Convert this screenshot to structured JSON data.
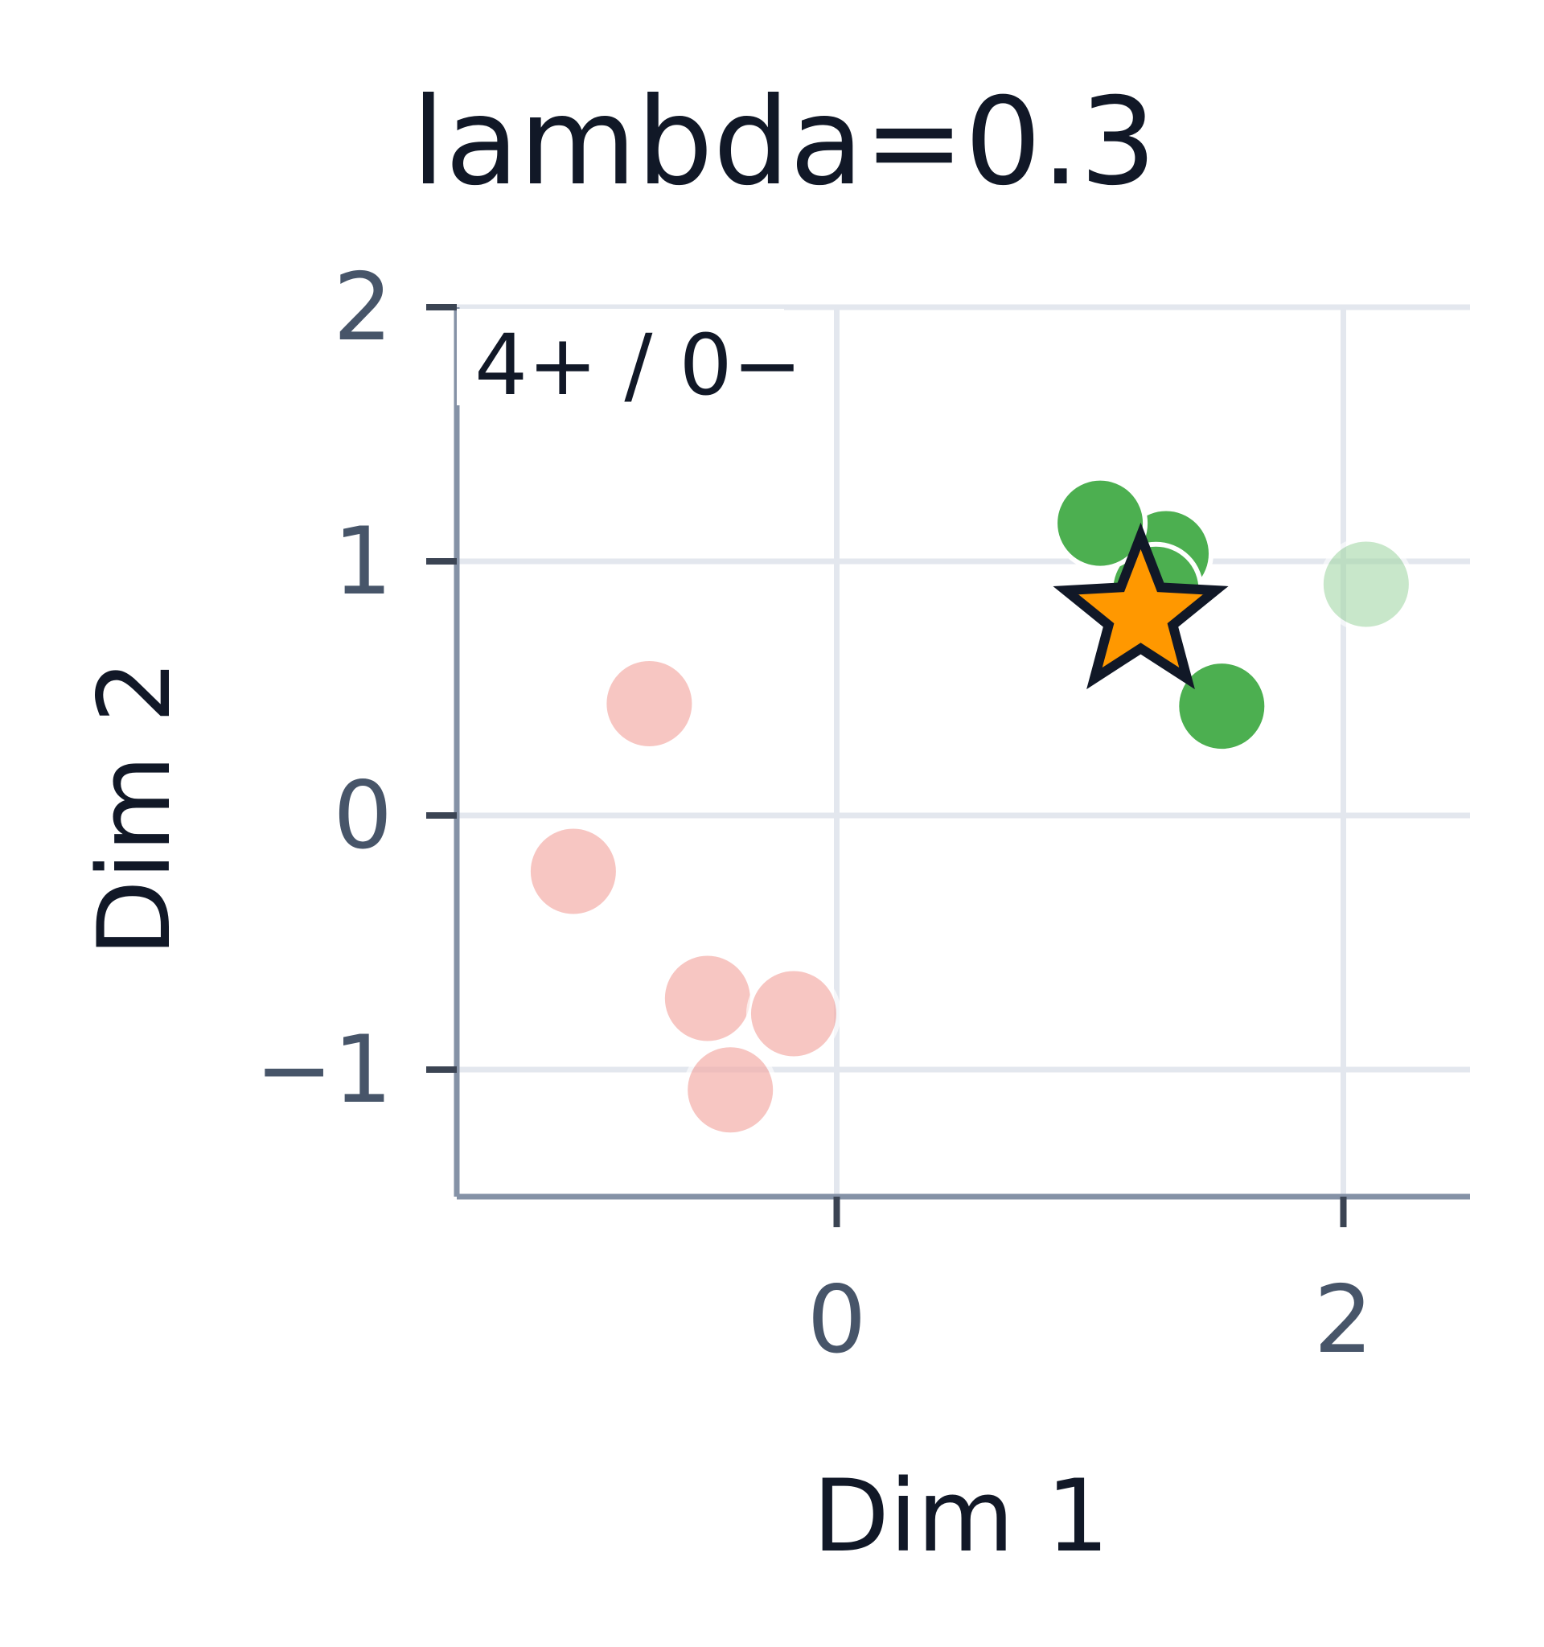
{
  "chart_data": {
    "type": "scatter",
    "title": "lambda=0.3",
    "xlabel": "Dim 1",
    "ylabel": "Dim 2",
    "xlim": [
      -1.5,
      2.5
    ],
    "ylim": [
      -1.5,
      2.0
    ],
    "xticks": [
      0,
      2
    ],
    "yticks": [
      -1,
      0,
      1,
      2
    ],
    "xtick_labels": [
      "0",
      "2"
    ],
    "ytick_labels": [
      "−1",
      "0",
      "1",
      "2"
    ],
    "grid": true,
    "annotation": "4+ / 0−",
    "series": [
      {
        "marker": "circle",
        "color": "#f4a9a3",
        "opacity": 0.65,
        "points": [
          {
            "x": -0.74,
            "y": 0.44
          },
          {
            "x": -1.04,
            "y": -0.22
          },
          {
            "x": -0.51,
            "y": -0.72
          },
          {
            "x": -0.17,
            "y": -0.78
          },
          {
            "x": -0.42,
            "y": -1.08
          }
        ]
      },
      {
        "marker": "circle",
        "color": "#a5d8a7",
        "opacity": 0.6,
        "points": [
          {
            "x": 2.09,
            "y": 0.91
          }
        ]
      },
      {
        "marker": "circle",
        "color": "#4caf50",
        "opacity": 1,
        "points": [
          {
            "x": 1.3,
            "y": 1.03
          },
          {
            "x": 1.26,
            "y": 0.89
          },
          {
            "x": 1.04,
            "y": 1.15
          },
          {
            "x": 1.52,
            "y": 0.43
          }
        ]
      },
      {
        "marker": "star",
        "color": "#ff9800",
        "edge_color": "#111827",
        "opacity": 1,
        "points": [
          {
            "x": 1.2,
            "y": 0.79
          }
        ]
      }
    ],
    "colors": {
      "axis": "#8592a6",
      "grid": "#e3e7ee",
      "text": "#111827",
      "tick_text": "#475569"
    }
  }
}
